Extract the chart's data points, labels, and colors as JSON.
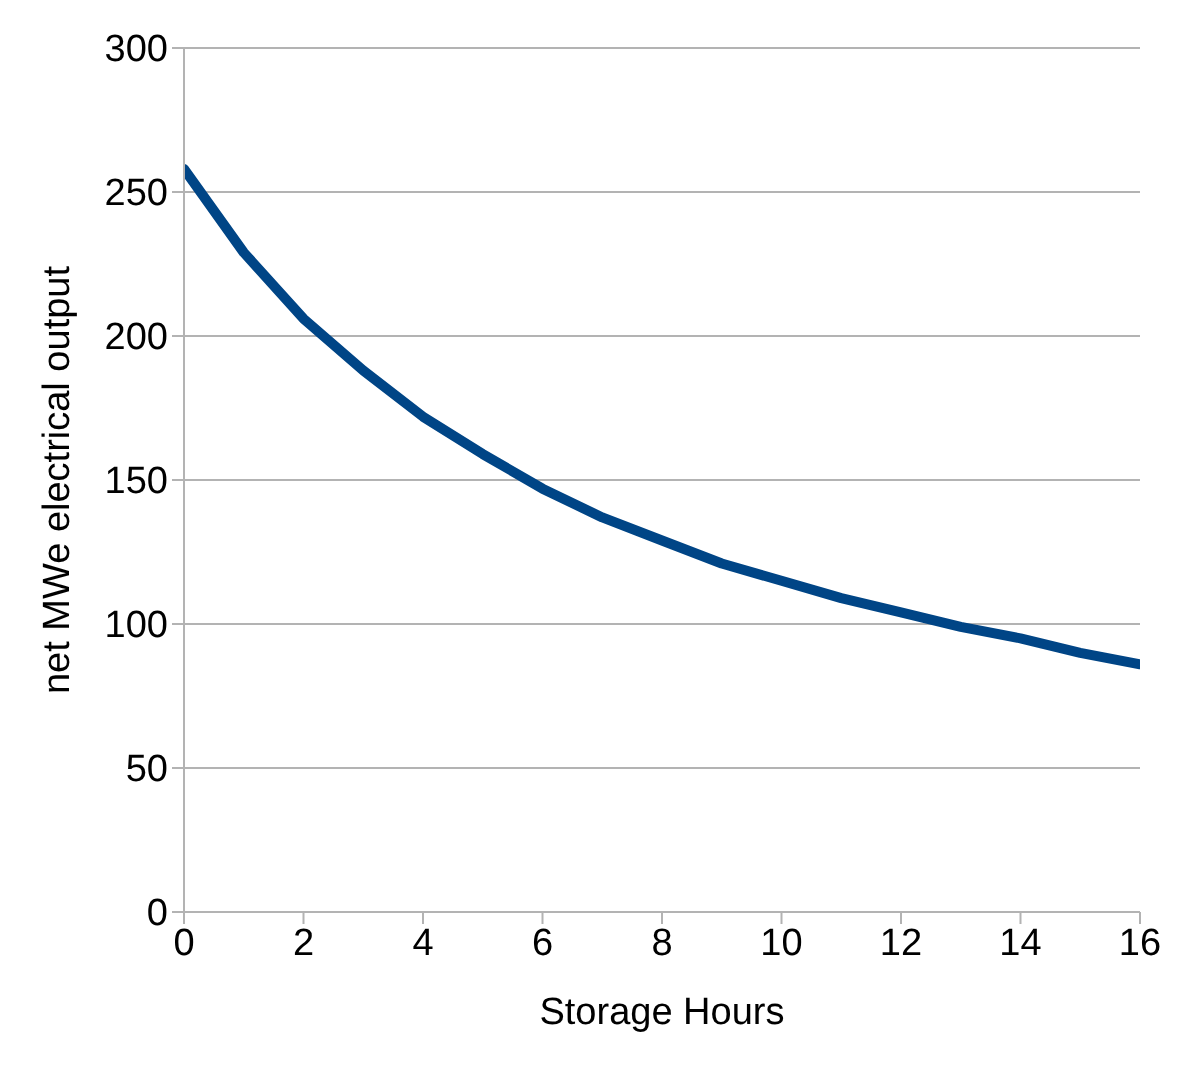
{
  "chart_data": {
    "type": "line",
    "xlabel": "Storage Hours",
    "ylabel": "net MWe electrical output",
    "x": [
      0,
      1,
      2,
      3,
      4,
      5,
      6,
      7,
      8,
      9,
      10,
      11,
      12,
      13,
      14,
      15,
      16
    ],
    "series": [
      {
        "color": "#004586",
        "values": [
          258,
          229,
          206,
          188,
          172,
          159,
          147,
          137,
          129,
          121,
          115,
          109,
          104,
          99,
          95,
          90,
          86
        ]
      }
    ],
    "xlim": [
      0,
      16
    ],
    "xticks": [
      0,
      2,
      4,
      6,
      8,
      10,
      12,
      14,
      16
    ],
    "ylim": [
      0,
      300
    ],
    "yticks": [
      0,
      50,
      100,
      150,
      200,
      250,
      300
    ],
    "grid": "y",
    "legend": false,
    "marker": "none",
    "line_style": "solid"
  }
}
